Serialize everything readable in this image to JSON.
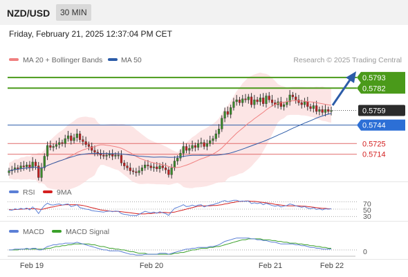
{
  "header": {
    "symbol": "NZD/USD",
    "timeframe": "30 MIN"
  },
  "timestamp": "Friday, February 21, 2025 12:37:04 PM CET",
  "legend_main": [
    {
      "label": "MA 20 + Bollinger Bands",
      "color": "#f08080"
    },
    {
      "label": "MA 50",
      "color": "#2c5ca8"
    }
  ],
  "copyright": "Research © 2025 Trading Central",
  "price_levels": [
    {
      "value": 0.5793,
      "label": "0.5793",
      "style": "resistance"
    },
    {
      "value": 0.5782,
      "label": "0.5782",
      "style": "resistance"
    },
    {
      "value": 0.5759,
      "label": "0.5759",
      "style": "last"
    },
    {
      "value": 0.5744,
      "label": "0.5744",
      "style": "pivot"
    },
    {
      "value": 0.5725,
      "label": "0.5725",
      "style": "support"
    },
    {
      "value": 0.5714,
      "label": "0.5714",
      "style": "support"
    }
  ],
  "legend_rsi": [
    {
      "label": "RSI",
      "color": "#5b7fd6"
    },
    {
      "label": "9MA",
      "color": "#d42020"
    }
  ],
  "rsi_levels": [
    "70",
    "50",
    "30"
  ],
  "legend_macd": [
    {
      "label": "MACD",
      "color": "#5b7fd6"
    },
    {
      "label": "MACD Signal",
      "color": "#3aa02a"
    }
  ],
  "macd_zero": "0",
  "x_labels": [
    "Feb 19",
    "Feb 20",
    "Feb 21",
    "Feb 22"
  ],
  "colors": {
    "up": "#3a8a2a",
    "down": "#c02020",
    "resistance": "#4a9a1a",
    "pivot": "#2c5ca8",
    "support": "#e06a6a",
    "last": "#333333"
  },
  "chart_data": {
    "type": "line",
    "yrange": [
      0.5686,
      0.5805
    ],
    "closes": [
      0.5697,
      0.5698,
      0.57,
      0.5699,
      0.5702,
      0.5701,
      0.5703,
      0.57,
      0.5706,
      0.5702,
      0.569,
      0.57,
      0.5712,
      0.5723,
      0.5721,
      0.5722,
      0.5724,
      0.5726,
      0.5725,
      0.573,
      0.5733,
      0.5728,
      0.5731,
      0.5735,
      0.5729,
      0.5727,
      0.5724,
      0.5722,
      0.5718,
      0.5716,
      0.5715,
      0.5713,
      0.5712,
      0.5713,
      0.5714,
      0.5712,
      0.5713,
      0.5713,
      0.5705,
      0.5702,
      0.57,
      0.5697,
      0.5696,
      0.5695,
      0.5697,
      0.57,
      0.5703,
      0.5702,
      0.57,
      0.5701,
      0.5699,
      0.5702,
      0.57,
      0.5698,
      0.5693,
      0.57,
      0.5707,
      0.571,
      0.5715,
      0.5722,
      0.5718,
      0.572,
      0.5723,
      0.5721,
      0.5725,
      0.5726,
      0.5722,
      0.5725,
      0.5728,
      0.573,
      0.5735,
      0.574,
      0.5751,
      0.5758,
      0.5755,
      0.5762,
      0.5768,
      0.577,
      0.5767,
      0.5771,
      0.577,
      0.5773,
      0.5765,
      0.577,
      0.5768,
      0.5772,
      0.5766,
      0.5774,
      0.577,
      0.5767,
      0.5765,
      0.5768,
      0.5763,
      0.5765,
      0.5768,
      0.5775,
      0.5773,
      0.577,
      0.5767,
      0.5765,
      0.5768,
      0.5763,
      0.5761,
      0.5764,
      0.5758,
      0.576,
      0.5757,
      0.576,
      0.5758,
      0.5759
    ],
    "rsi_range": [
      20,
      80
    ],
    "rsi": [
      48,
      47,
      51,
      49,
      52,
      50,
      53,
      48,
      56,
      49,
      38,
      50,
      60,
      66,
      62,
      61,
      63,
      64,
      61,
      63,
      64,
      57,
      59,
      62,
      54,
      52,
      50,
      49,
      46,
      45,
      44,
      43,
      42,
      44,
      45,
      43,
      45,
      44,
      38,
      36,
      35,
      33,
      33,
      32,
      36,
      40,
      44,
      42,
      40,
      42,
      39,
      43,
      40,
      38,
      33,
      43,
      52,
      55,
      58,
      62,
      57,
      58,
      61,
      58,
      61,
      62,
      56,
      59,
      61,
      62,
      65,
      67,
      71,
      73,
      70,
      72,
      74,
      74,
      71,
      72,
      71,
      72,
      65,
      67,
      65,
      67,
      62,
      66,
      63,
      60,
      58,
      60,
      56,
      58,
      60,
      64,
      62,
      59,
      57,
      55,
      57,
      53,
      51,
      54,
      49,
      51,
      48,
      51,
      50,
      51
    ],
    "rsi_ma": [
      49,
      48,
      49,
      49,
      50,
      50,
      51,
      51,
      51,
      51,
      50,
      49,
      51,
      53,
      55,
      56,
      58,
      60,
      61,
      62,
      62,
      62,
      62,
      62,
      61,
      60,
      58,
      56,
      54,
      52,
      50,
      48,
      47,
      46,
      45,
      44,
      44,
      44,
      43,
      42,
      41,
      40,
      39,
      38,
      37,
      37,
      37,
      38,
      38,
      39,
      40,
      40,
      41,
      41,
      40,
      41,
      42,
      44,
      46,
      48,
      50,
      52,
      54,
      56,
      58,
      59,
      59,
      59,
      59,
      60,
      60,
      61,
      62,
      64,
      65,
      67,
      68,
      70,
      71,
      71,
      72,
      72,
      71,
      71,
      70,
      69,
      68,
      67,
      66,
      65,
      63,
      62,
      61,
      60,
      59,
      59,
      59,
      59,
      59,
      58,
      58,
      57,
      56,
      55,
      54,
      53,
      52,
      52,
      51,
      51
    ],
    "macd_range": [
      -0.0009,
      0.0017
    ],
    "macd": [
      0.0,
      0.0,
      0.0001,
      0.0001,
      0.0001,
      0.0001,
      0.0002,
      0.0001,
      0.0002,
      0.0002,
      0.0,
      0.0,
      0.0002,
      0.0004,
      0.0005,
      0.0006,
      0.0006,
      0.0007,
      0.0007,
      0.0008,
      0.0008,
      0.0008,
      0.0008,
      0.0009,
      0.0008,
      0.0007,
      0.0006,
      0.0005,
      0.0004,
      0.0003,
      0.0002,
      0.0001,
      0.0,
      0.0,
      -0.0001,
      -0.0001,
      -0.0001,
      -0.0001,
      -0.0002,
      -0.0003,
      -0.0004,
      -0.0005,
      -0.0005,
      -0.0006,
      -0.0006,
      -0.0006,
      -0.0005,
      -0.0005,
      -0.0005,
      -0.0005,
      -0.0005,
      -0.0004,
      -0.0004,
      -0.0004,
      -0.0005,
      -0.0004,
      -0.0003,
      -0.0002,
      -0.0001,
      0.0,
      0.0001,
      0.0001,
      0.0002,
      0.0002,
      0.0003,
      0.0003,
      0.0003,
      0.0003,
      0.0004,
      0.0004,
      0.0005,
      0.0006,
      0.0008,
      0.001,
      0.0011,
      0.0012,
      0.0013,
      0.0014,
      0.0014,
      0.0014,
      0.0014,
      0.0014,
      0.0013,
      0.0013,
      0.0012,
      0.0012,
      0.0011,
      0.0011,
      0.001,
      0.0009,
      0.0009,
      0.0008,
      0.0007,
      0.0007,
      0.0007,
      0.0007,
      0.0007,
      0.0006,
      0.0006,
      0.0005,
      0.0005,
      0.0004,
      0.0003,
      0.0003,
      0.0002,
      0.0002,
      0.0001,
      0.0001,
      0.0001,
      0.0001
    ],
    "macd_signal": [
      0.0,
      0.0,
      0.0,
      0.0,
      0.0001,
      0.0001,
      0.0001,
      0.0001,
      0.0001,
      0.0001,
      0.0001,
      0.0001,
      0.0001,
      0.0002,
      0.0002,
      0.0003,
      0.0004,
      0.0004,
      0.0005,
      0.0005,
      0.0006,
      0.0006,
      0.0007,
      0.0007,
      0.0007,
      0.0007,
      0.0007,
      0.0007,
      0.0006,
      0.0006,
      0.0005,
      0.0004,
      0.0004,
      0.0003,
      0.0002,
      0.0002,
      0.0001,
      0.0001,
      0.0,
      0.0,
      -0.0001,
      -0.0002,
      -0.0002,
      -0.0003,
      -0.0004,
      -0.0004,
      -0.0004,
      -0.0005,
      -0.0005,
      -0.0005,
      -0.0005,
      -0.0005,
      -0.0005,
      -0.0005,
      -0.0005,
      -0.0005,
      -0.0004,
      -0.0004,
      -0.0003,
      -0.0003,
      -0.0002,
      -0.0001,
      0.0,
      0.0,
      0.0001,
      0.0002,
      0.0002,
      0.0002,
      0.0003,
      0.0003,
      0.0004,
      0.0004,
      0.0005,
      0.0006,
      0.0007,
      0.0008,
      0.0009,
      0.001,
      0.0011,
      0.0012,
      0.0012,
      0.0013,
      0.0013,
      0.0013,
      0.0013,
      0.0013,
      0.0012,
      0.0012,
      0.0012,
      0.0011,
      0.0011,
      0.001,
      0.001,
      0.0009,
      0.0009,
      0.0008,
      0.0008,
      0.0008,
      0.0007,
      0.0007,
      0.0006,
      0.0006,
      0.0005,
      0.0005,
      0.0004,
      0.0004,
      0.0003,
      0.0003,
      0.0002,
      0.0002
    ]
  }
}
